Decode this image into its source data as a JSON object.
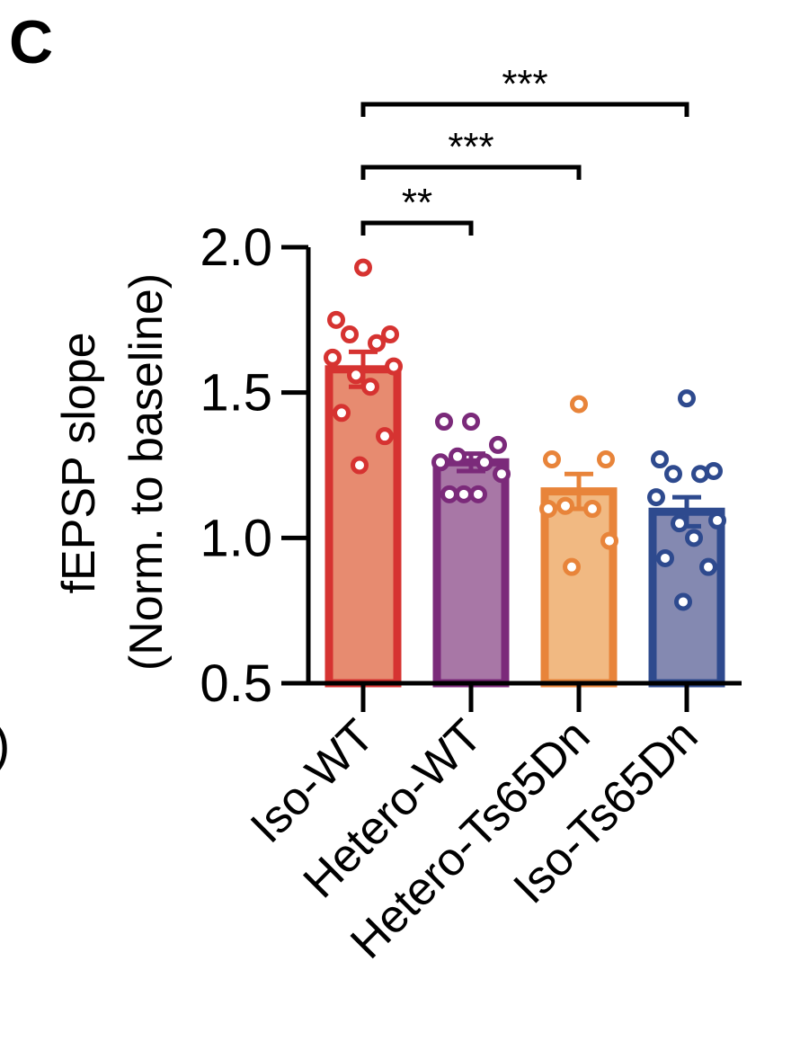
{
  "panel_label": "C",
  "edge_fragment": ")",
  "chart_data": {
    "type": "bar",
    "ylabel_line1": "fEPSP slope",
    "ylabel_line2": "(Norm. to baseline)",
    "ylim": [
      0.5,
      2.0
    ],
    "yticks": [
      "0.5",
      "1.0",
      "1.5",
      "2.0"
    ],
    "ytick_values": [
      0.5,
      1.0,
      1.5,
      2.0
    ],
    "categories": [
      "Iso-WT",
      "Hetero-WT",
      "Hetero-Ts65Dn",
      "Iso-Ts65Dn"
    ],
    "means": [
      1.58,
      1.26,
      1.16,
      1.09
    ],
    "sem": [
      0.06,
      0.03,
      0.06,
      0.05
    ],
    "colors": {
      "edge": [
        "#d63331",
        "#7b2a7a",
        "#e8843a",
        "#2e4a8e"
      ],
      "fill": [
        "#e78b70",
        "#a877a6",
        "#f1b982",
        "#8489b1"
      ]
    },
    "points": [
      [
        1.93,
        1.75,
        1.7,
        1.7,
        1.67,
        1.62,
        1.59,
        1.56,
        1.52,
        1.43,
        1.35,
        1.25
      ],
      [
        1.4,
        1.4,
        1.32,
        1.28,
        1.26,
        1.26,
        1.22,
        1.15,
        1.15,
        1.15
      ],
      [
        1.46,
        1.27,
        1.27,
        1.11,
        1.1,
        1.1,
        0.99,
        0.9
      ],
      [
        1.48,
        1.27,
        1.23,
        1.22,
        1.22,
        1.14,
        1.06,
        1.05,
        1.0,
        0.93,
        0.9,
        0.78
      ]
    ],
    "significance": [
      {
        "from": 0,
        "to": 1,
        "label": "**"
      },
      {
        "from": 0,
        "to": 2,
        "label": "***"
      },
      {
        "from": 0,
        "to": 3,
        "label": "***"
      }
    ]
  }
}
